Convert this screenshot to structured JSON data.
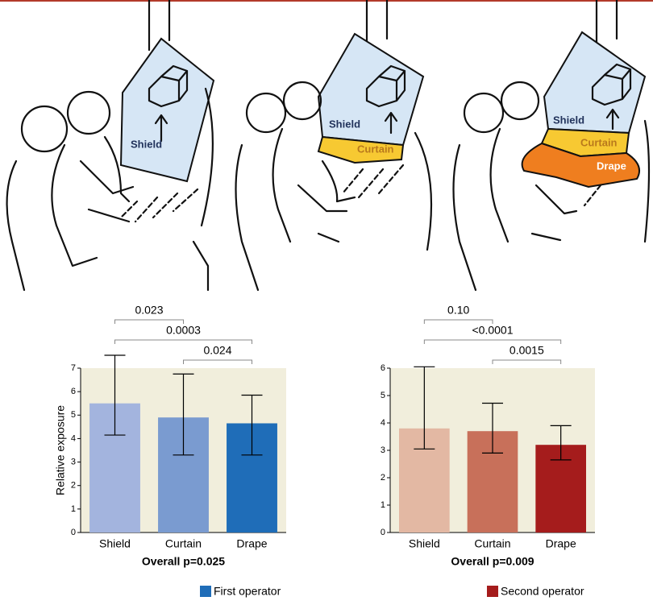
{
  "illustration": {
    "panels": [
      {
        "labels": [
          "Shield"
        ]
      },
      {
        "labels": [
          "Shield",
          "Curtain"
        ]
      },
      {
        "labels": [
          "Shield",
          "Curtain",
          "Drape"
        ]
      }
    ]
  },
  "chart_data": [
    {
      "type": "bar",
      "ylabel": "Relative exposure",
      "xlabel": "Overall p=0.025",
      "categories": [
        "Shield",
        "Curtain",
        "Drape"
      ],
      "series": [
        {
          "name": "First operator",
          "color": "#1f6db8",
          "values": [
            5.5,
            4.9,
            4.65
          ],
          "ci_low": [
            4.15,
            3.3,
            3.3
          ],
          "ci_high": [
            7.55,
            6.75,
            5.85
          ],
          "bar_colors": [
            "#a3b4de",
            "#7a9bd0",
            "#1f6db8"
          ]
        }
      ],
      "comparisons": [
        "0.023",
        "0.0003",
        "0.024"
      ],
      "ylim": [
        0,
        7
      ],
      "yticks": [
        0,
        1,
        2,
        3,
        4,
        5,
        6,
        7
      ],
      "background": "#f1eedc"
    },
    {
      "type": "bar",
      "xlabel": "Overall p=0.009",
      "categories": [
        "Shield",
        "Curtain",
        "Drape"
      ],
      "series": [
        {
          "name": "Second operator",
          "color": "#a51c1c",
          "values": [
            3.8,
            3.7,
            3.2
          ],
          "ci_low": [
            3.05,
            2.9,
            2.65
          ],
          "ci_high": [
            6.05,
            4.72,
            3.9
          ],
          "bar_colors": [
            "#e3b8a3",
            "#c8705a",
            "#a51c1c"
          ]
        }
      ],
      "comparisons": [
        "0.10",
        "<0.0001",
        "0.0015"
      ],
      "ylim": [
        0,
        6
      ],
      "yticks": [
        0,
        1,
        2,
        3,
        4,
        5,
        6
      ],
      "background": "#f1eedc"
    }
  ]
}
